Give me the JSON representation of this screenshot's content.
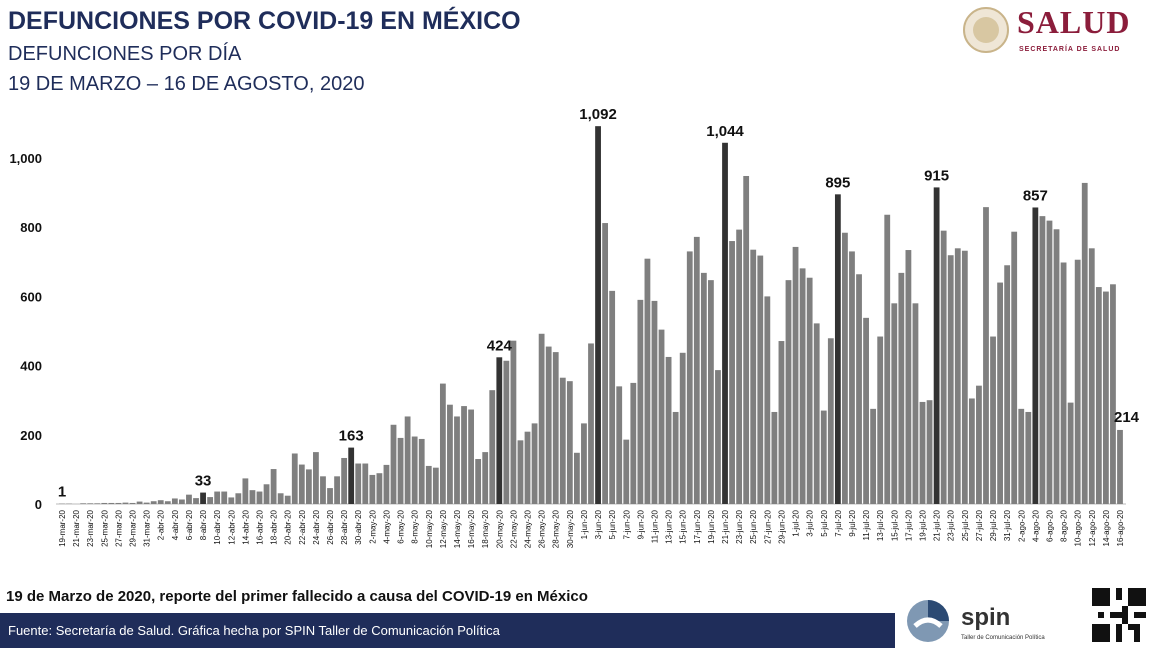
{
  "header": {
    "title": "DEFUNCIONES POR COVID-19 EN MÉXICO",
    "subtitle": "DEFUNCIONES POR DÍA",
    "date_range": "19 DE MARZO – 16 DE AGOSTO, 2020"
  },
  "logo": {
    "name": "SALUD",
    "tagline": "SECRETARÍA DE SALUD",
    "brand_color": "#8b1d3b"
  },
  "note": "19 de Marzo  de 2020, reporte del primer fallecido  a causa  del COVID-19  en México",
  "footer": {
    "source": "Fuente: Secretaría de Salud.  Gráfica hecha por SPIN Taller de Comunicación Política",
    "spin_name": "spin",
    "spin_tagline": "Taller de Comunicación Política",
    "bg_color": "#1f2d5a"
  },
  "chart_data": {
    "type": "bar",
    "title": "",
    "xlabel": "",
    "ylabel": "",
    "ylim": [
      0,
      1100
    ],
    "yticks": [
      0,
      200,
      400,
      600,
      800,
      1000
    ],
    "ytick_labels": [
      "0",
      "200",
      "400",
      "600",
      "800",
      "1,000"
    ],
    "grid": false,
    "bar_color": "#7f7f7f",
    "highlight_color": "#333333",
    "x": [
      "19-mar-20",
      "20-mar-20",
      "21-mar-20",
      "22-mar-20",
      "23-mar-20",
      "24-mar-20",
      "25-mar-20",
      "26-mar-20",
      "27-mar-20",
      "28-mar-20",
      "29-mar-20",
      "30-mar-20",
      "31-mar-20",
      "1-abr-20",
      "2-abr-20",
      "3-abr-20",
      "4-abr-20",
      "5-abr-20",
      "6-abr-20",
      "7-abr-20",
      "8-abr-20",
      "9-abr-20",
      "10-abr-20",
      "11-abr-20",
      "12-abr-20",
      "13-abr-20",
      "14-abr-20",
      "15-abr-20",
      "16-abr-20",
      "17-abr-20",
      "18-abr-20",
      "19-abr-20",
      "20-abr-20",
      "21-abr-20",
      "22-abr-20",
      "23-abr-20",
      "24-abr-20",
      "25-abr-20",
      "26-abr-20",
      "27-abr-20",
      "28-abr-20",
      "29-abr-20",
      "30-abr-20",
      "1-may-20",
      "2-may-20",
      "3-may-20",
      "4-may-20",
      "5-may-20",
      "6-may-20",
      "7-may-20",
      "8-may-20",
      "9-may-20",
      "10-may-20",
      "11-may-20",
      "12-may-20",
      "13-may-20",
      "14-may-20",
      "15-may-20",
      "16-may-20",
      "17-may-20",
      "18-may-20",
      "19-may-20",
      "20-may-20",
      "21-may-20",
      "22-may-20",
      "23-may-20",
      "24-may-20",
      "25-may-20",
      "26-may-20",
      "27-may-20",
      "28-may-20",
      "29-may-20",
      "30-may-20",
      "31-may-20",
      "1-jun-20",
      "2-jun-20",
      "3-jun-20",
      "4-jun-20",
      "5-jun-20",
      "6-jun-20",
      "7-jun-20",
      "8-jun-20",
      "9-jun-20",
      "10-jun-20",
      "11-jun-20",
      "12-jun-20",
      "13-jun-20",
      "14-jun-20",
      "15-jun-20",
      "16-jun-20",
      "17-jun-20",
      "18-jun-20",
      "19-jun-20",
      "20-jun-20",
      "21-jun-20",
      "22-jun-20",
      "23-jun-20",
      "24-jun-20",
      "25-jun-20",
      "26-jun-20",
      "27-jun-20",
      "28-jun-20",
      "29-jun-20",
      "30-jun-20",
      "1-jul-20",
      "2-jul-20",
      "3-jul-20",
      "4-jul-20",
      "5-jul-20",
      "6-jul-20",
      "7-jul-20",
      "8-jul-20",
      "9-jul-20",
      "10-jul-20",
      "11-jul-20",
      "12-jul-20",
      "13-jul-20",
      "14-jul-20",
      "15-jul-20",
      "16-jul-20",
      "17-jul-20",
      "18-jul-20",
      "19-jul-20",
      "20-jul-20",
      "21-jul-20",
      "22-jul-20",
      "23-jul-20",
      "24-jul-20",
      "25-jul-20",
      "26-jul-20",
      "27-jul-20",
      "28-jul-20",
      "29-jul-20",
      "30-jul-20",
      "31-jul-20",
      "1-ago-20",
      "2-ago-20",
      "3-ago-20",
      "4-ago-20",
      "5-ago-20",
      "6-ago-20",
      "7-ago-20",
      "8-ago-20",
      "9-ago-20",
      "10-ago-20",
      "11-ago-20",
      "12-ago-20",
      "13-ago-20",
      "14-ago-20",
      "15-ago-20",
      "16-ago-20"
    ],
    "values": [
      1,
      1,
      0,
      2,
      2,
      2,
      3,
      3,
      3,
      4,
      3,
      7,
      4,
      8,
      11,
      8,
      16,
      13,
      27,
      17,
      33,
      20,
      36,
      36,
      19,
      31,
      74,
      40,
      36,
      57,
      101,
      31,
      24,
      146,
      114,
      100,
      150,
      80,
      46,
      80,
      133,
      163,
      117,
      117,
      84,
      89,
      113,
      229,
      191,
      253,
      195,
      188,
      110,
      105,
      348,
      287,
      253,
      283,
      273,
      130,
      150,
      329,
      424,
      414,
      472,
      184,
      209,
      233,
      492,
      455,
      439,
      365,
      355,
      148,
      233,
      464,
      1092,
      812,
      616,
      340,
      186,
      350,
      590,
      709,
      587,
      504,
      425,
      266,
      437,
      730,
      772,
      668,
      647,
      387,
      1044,
      760,
      793,
      948,
      735,
      718,
      600,
      266,
      471,
      647,
      743,
      681,
      654,
      522,
      270,
      479,
      895,
      784,
      730,
      664,
      538,
      275,
      484,
      836,
      580,
      668,
      734,
      580,
      295,
      300,
      915,
      790,
      719,
      739,
      732,
      305,
      342,
      858,
      484,
      640,
      690,
      787,
      275,
      266,
      857,
      832,
      819,
      794,
      698,
      293,
      706,
      928,
      739,
      627,
      614,
      635,
      214
    ],
    "tick_every": 2,
    "data_labels": [
      {
        "date": "19-mar-20",
        "text": "1"
      },
      {
        "date": "8-abr-20",
        "text": "33"
      },
      {
        "date": "29-abr-20",
        "text": "163"
      },
      {
        "date": "20-may-20",
        "text": "424"
      },
      {
        "date": "3-jun-20",
        "text": "1,092"
      },
      {
        "date": "21-jun-20",
        "text": "1,044"
      },
      {
        "date": "7-jul-20",
        "text": "895"
      },
      {
        "date": "21-jul-20",
        "text": "915"
      },
      {
        "date": "4-ago-20",
        "text": "857"
      },
      {
        "date": "16-ago-20",
        "text": "214"
      }
    ]
  }
}
